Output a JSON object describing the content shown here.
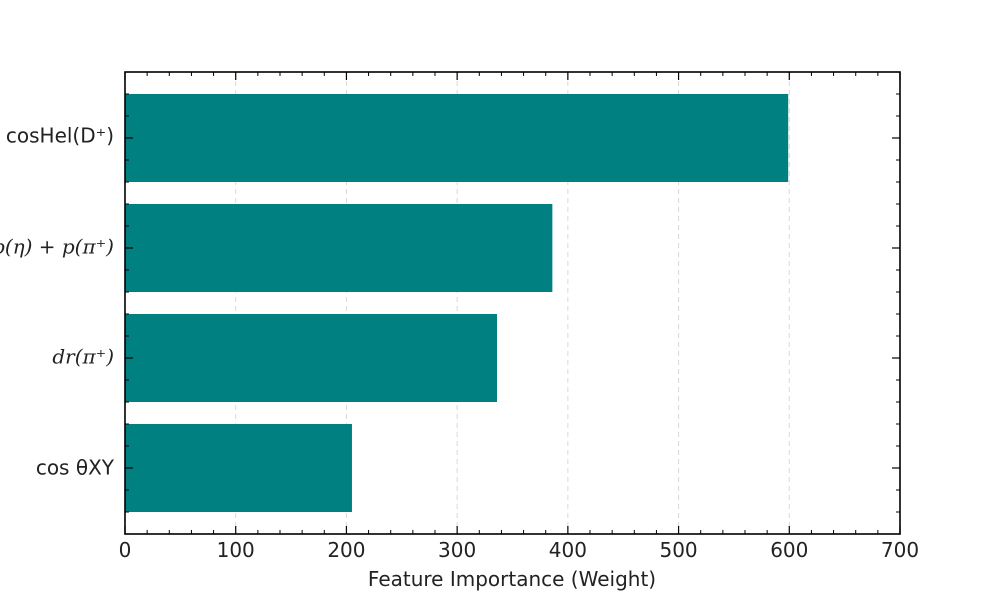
{
  "chart_data": {
    "type": "bar",
    "orientation": "horizontal",
    "categories": [
      "cosHel(D⁺)",
      "p(η) + p(π⁺)",
      "dr(π⁺)",
      "cos θXY"
    ],
    "values": [
      599,
      386,
      336,
      205
    ],
    "xlabel": "Feature Importance (Weight)",
    "ylabel": "",
    "title": "",
    "xlim": [
      0,
      700
    ],
    "xticks": [
      0,
      100,
      200,
      300,
      400,
      500,
      600,
      700
    ],
    "grid": "vertical dashed",
    "bar_color": "#008080"
  }
}
